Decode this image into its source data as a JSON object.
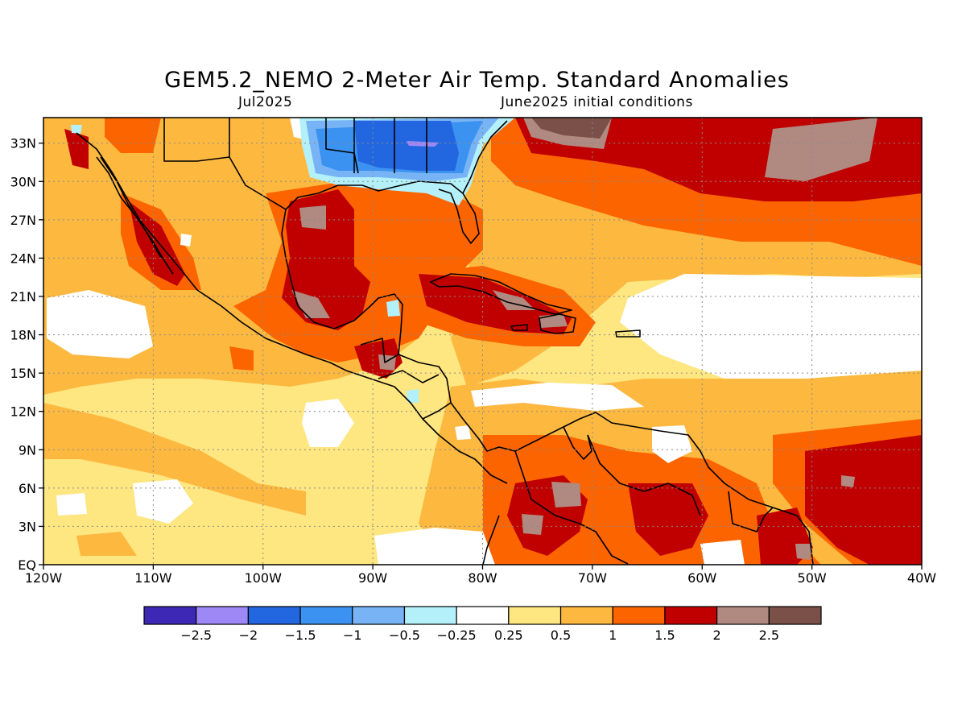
{
  "title": "GEM5.2_NEMO 2-Meter Air Temp. Standard Anomalies",
  "subtitle_left": "Jul2025",
  "subtitle_right": "June2025 initial conditions",
  "lon_labels": [
    "120W",
    "110W",
    "100W",
    "90W",
    "80W",
    "70W",
    "60W",
    "50W",
    "40W"
  ],
  "lat_labels": [
    "33N",
    "30N",
    "27N",
    "24N",
    "21N",
    "18N",
    "15N",
    "12N",
    "9N",
    "6N",
    "3N",
    "EQ"
  ],
  "colorbar": {
    "colors": [
      "#3c28b4",
      "#9e88f5",
      "#2266e0",
      "#3b92f0",
      "#78b4f5",
      "#b4f0fa",
      "#ffffff",
      "#fee680",
      "#fdb840",
      "#fc6400",
      "#c00000",
      "#b08a80",
      "#7a5048"
    ],
    "labels": [
      "-2.5",
      "-2",
      "-1.5",
      "-1",
      "-0.5",
      "-0.25",
      "0.25",
      "0.5",
      "1",
      "1.5",
      "2",
      "2.5"
    ]
  }
}
